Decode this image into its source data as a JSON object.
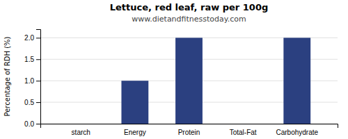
{
  "chart_data": {
    "type": "bar",
    "title": "Lettuce, red leaf, raw per 100g",
    "subtitle": "www.dietandfitnesstoday.com",
    "categories": [
      "starch",
      "Energy",
      "Protein",
      "Total-Fat",
      "Carbohydrate"
    ],
    "values": [
      0.0,
      1.0,
      2.0,
      0.0,
      2.0
    ],
    "color": "#2b4080",
    "ylabel": "Percentage of RDH (%)",
    "ylim": [
      0,
      2.2
    ],
    "yticks": [
      {
        "value": 0,
        "label": "0.0"
      },
      {
        "value": 0.5,
        "label": "0.5"
      },
      {
        "value": 1,
        "label": "1.0"
      },
      {
        "value": 1.5,
        "label": "1.5"
      },
      {
        "value": 2,
        "label": "2.0"
      }
    ],
    "grid": true
  }
}
